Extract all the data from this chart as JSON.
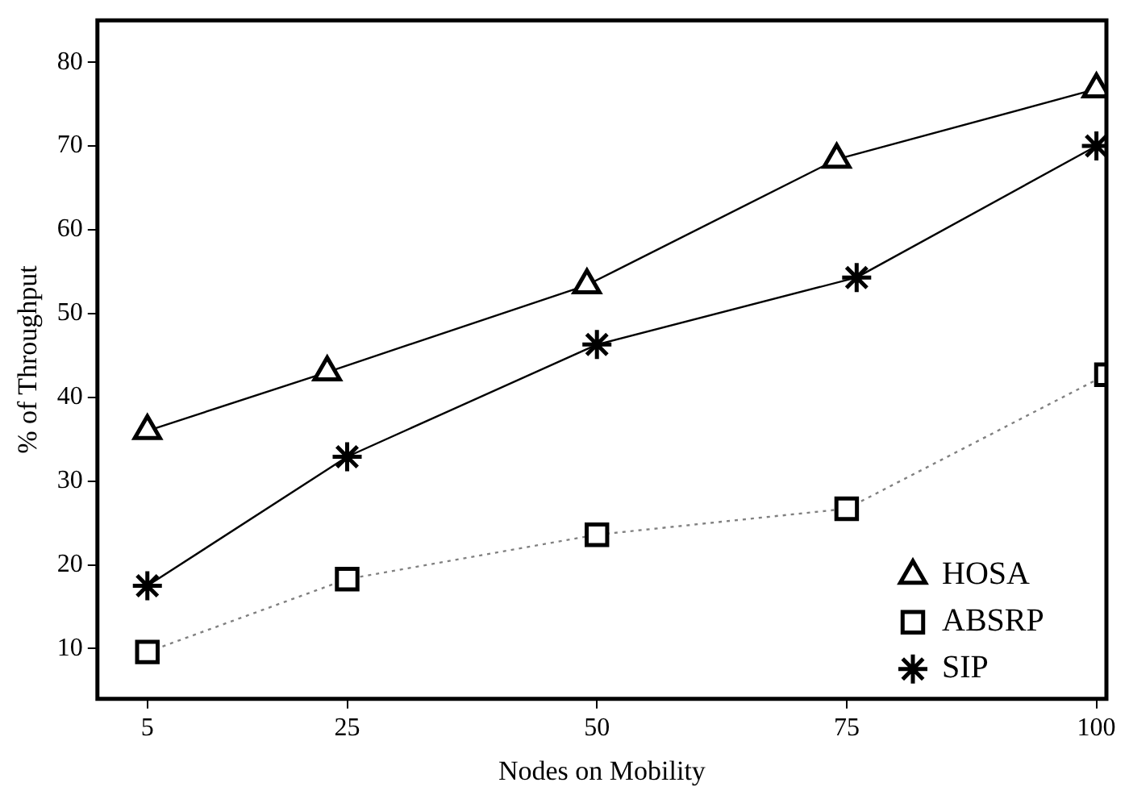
{
  "chart_data": {
    "type": "line",
    "xlabel": "Nodes on Mobility",
    "ylabel": "% of Throughput",
    "xlim": [
      0,
      101
    ],
    "xticks": [
      5,
      25,
      50,
      75,
      100
    ],
    "ylim": [
      4,
      85
    ],
    "yticks": [
      10,
      20,
      30,
      40,
      50,
      60,
      70,
      80
    ],
    "grid": false,
    "legend": "bottom right",
    "series": [
      {
        "name": "HOSA",
        "color": "#000000",
        "marker": "triangle",
        "line_style": "solid",
        "x": [
          5,
          23,
          49,
          74,
          100
        ],
        "values": [
          36,
          43,
          53.4,
          68.4,
          76.8
        ]
      },
      {
        "name": "ABSRP",
        "color": "#808080",
        "marker": "square",
        "line_style": "dotted",
        "x": [
          5,
          25,
          50,
          75,
          101
        ],
        "values": [
          9.6,
          18.3,
          23.6,
          26.7,
          42.7
        ]
      },
      {
        "name": "SIP",
        "color": "#000000",
        "marker": "cross",
        "line_style": "solid",
        "x": [
          5,
          25,
          50,
          76,
          100
        ],
        "values": [
          17.5,
          32.9,
          46.3,
          54.3,
          70
        ]
      }
    ]
  }
}
